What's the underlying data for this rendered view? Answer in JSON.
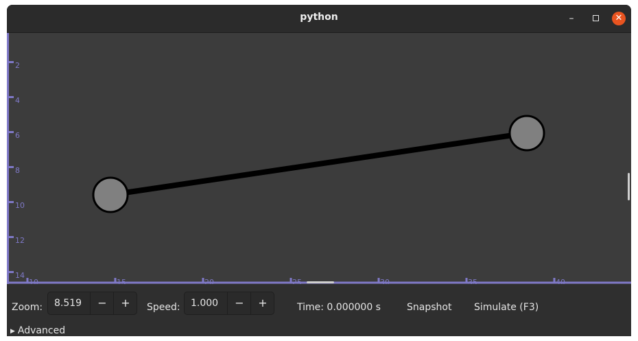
{
  "window": {
    "title": "python",
    "minimize_glyph": "–",
    "close_glyph": "✕"
  },
  "canvas": {
    "y_ticks": [
      "2",
      "4",
      "6",
      "8",
      "10",
      "12",
      "14"
    ],
    "x_ticks": [
      "10",
      "15",
      "20",
      "25",
      "30",
      "35",
      "40"
    ],
    "axis_color": "#7f79c8",
    "node_fill": "#808080",
    "nodes": [
      {
        "id": "node-a"
      },
      {
        "id": "node-b"
      }
    ]
  },
  "controls": {
    "zoom_label": "Zoom:",
    "zoom_value": "8.519",
    "speed_label": "Speed:",
    "speed_value": "1.000",
    "minus": "−",
    "plus": "+",
    "time_text": "Time: 0.000000 s",
    "snapshot_label": "Snapshot",
    "simulate_label": "Simulate (F3)",
    "advanced_label": "Advanced"
  }
}
